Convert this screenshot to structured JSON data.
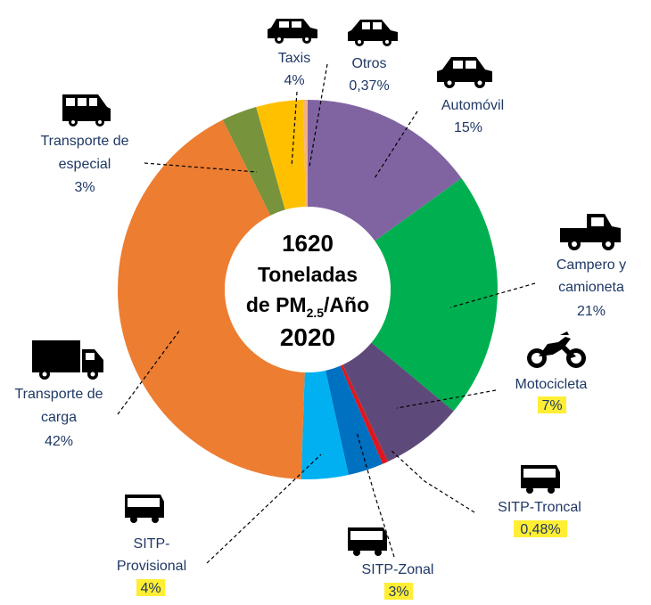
{
  "chart_data": {
    "type": "pie",
    "donut": true,
    "center_text": {
      "line1": "1620",
      "line2": "Toneladas",
      "line3a": "de PM",
      "line3sub": "2.5",
      "line3b": "/Año",
      "line4": "2020"
    },
    "slices": [
      {
        "name": "Automóvil",
        "value": 15,
        "value_label": "15%",
        "color": "#8064a2",
        "icon": "car-icon"
      },
      {
        "name": "Campero y camioneta",
        "value": 21,
        "value_label": "21%",
        "color": "#00b050",
        "icon": "pickup-truck-icon"
      },
      {
        "name": "Motocicleta",
        "value": 7,
        "value_label": "7%",
        "color": "#5e4a7a",
        "icon": "motorcycle-icon",
        "highlighted": true
      },
      {
        "name": "SITP-Troncal",
        "value": 0.48,
        "value_label": "0,48%",
        "color": "#e0161d",
        "icon": "bus-icon",
        "highlighted": true
      },
      {
        "name": "SITP-Zonal",
        "value": 3,
        "value_label": "3%",
        "color": "#0070c0",
        "icon": "bus-icon",
        "highlighted": true
      },
      {
        "name": "SITP-Provisional",
        "value": 4,
        "value_label": "4%",
        "color": "#00b0f0",
        "icon": "bus-icon",
        "highlighted": true
      },
      {
        "name": "Transporte de carga",
        "value": 42,
        "value_label": "42%",
        "color": "#ed7d31",
        "icon": "cargo-truck-icon"
      },
      {
        "name": "Transporte de especial",
        "value": 3,
        "value_label": "3%",
        "color": "#77933c",
        "icon": "van-icon"
      },
      {
        "name": "Taxis",
        "value": 4,
        "value_label": "4%",
        "color": "#ffc000",
        "icon": "taxi-icon"
      },
      {
        "name": "Otros",
        "value": 0.37,
        "value_label": "0,37%",
        "color": "#f4b183",
        "icon": "car-icon"
      }
    ]
  },
  "labels": {
    "automovil": "Automóvil",
    "campero_1": "Campero y",
    "campero_2": "camioneta",
    "motocicleta": "Motocicleta",
    "sitp_troncal": "SITP-Troncal",
    "sitp_zonal": "SITP-Zonal",
    "sitp_prov_1": "SITP-",
    "sitp_prov_2": "Provisional",
    "carga_1": "Transporte de",
    "carga_2": "carga",
    "especial_1": "Transporte de",
    "especial_2": "especial",
    "taxis": "Taxis",
    "otros": "Otros"
  }
}
